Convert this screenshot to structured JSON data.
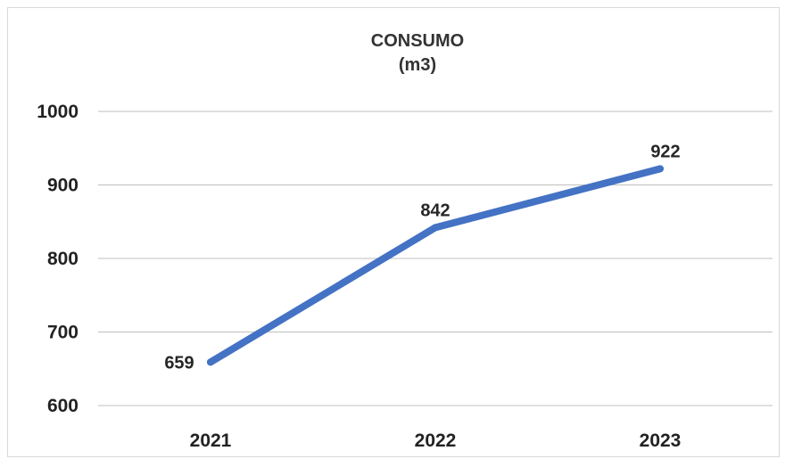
{
  "chart_data": {
    "type": "line",
    "title": "CONSUMO",
    "subtitle": "(m3)",
    "categories": [
      "2021",
      "2022",
      "2023"
    ],
    "series": [
      {
        "values": [
          659,
          842,
          922
        ],
        "color": "#4472C4"
      }
    ],
    "data_labels": [
      "659",
      "842",
      "922"
    ],
    "y_ticks": [
      "600",
      "700",
      "800",
      "900",
      "1000"
    ],
    "ylim": [
      600,
      1000
    ],
    "grid": true,
    "legend": "none"
  }
}
